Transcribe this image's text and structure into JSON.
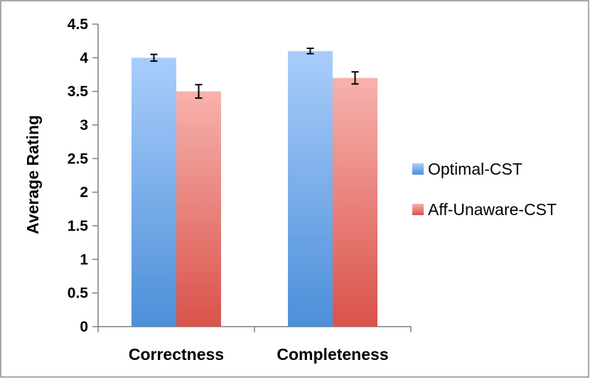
{
  "chart_data": {
    "type": "bar",
    "categories": [
      "Correctness",
      "Completeness"
    ],
    "series": [
      {
        "name": "Optimal-CST",
        "values": [
          4.0,
          4.1
        ],
        "errors": [
          0.05,
          0.04
        ],
        "color_top": "#a9cdfb",
        "color_bottom": "#4c8fd9"
      },
      {
        "name": "Aff-Unaware-CST",
        "values": [
          3.5,
          3.7
        ],
        "errors": [
          0.1,
          0.09
        ],
        "color_top": "#f8b2ad",
        "color_bottom": "#d9524a"
      }
    ],
    "xlabel": "",
    "ylabel": "Average Rating",
    "ylim": [
      0,
      4.5
    ],
    "yticks": [
      {
        "value": 0,
        "label": "0"
      },
      {
        "value": 0.5,
        "label": "0.5"
      },
      {
        "value": 1,
        "label": "1"
      },
      {
        "value": 1.5,
        "label": "1.5"
      },
      {
        "value": 2,
        "label": "2"
      },
      {
        "value": 2.5,
        "label": "2.5"
      },
      {
        "value": 3,
        "label": "3"
      },
      {
        "value": 3.5,
        "label": "3.5"
      },
      {
        "value": 4,
        "label": "4"
      },
      {
        "value": 4.5,
        "label": "4.5"
      }
    ],
    "grid": false,
    "legend_position": "right"
  }
}
